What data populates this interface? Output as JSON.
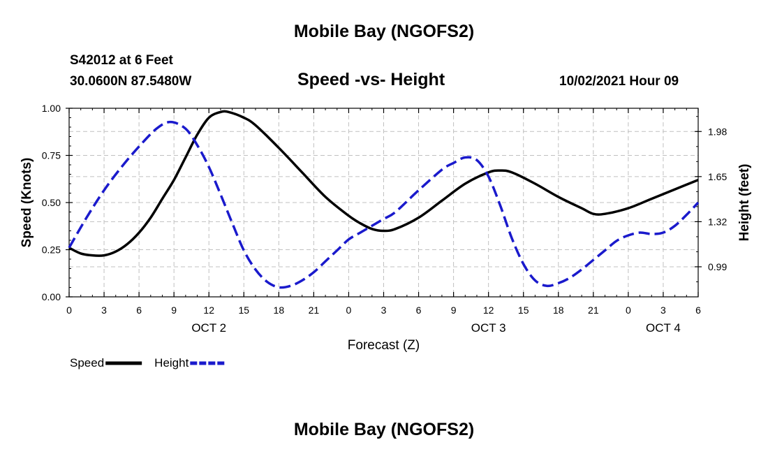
{
  "page": {
    "top_title": "Mobile Bay (NGOFS2)",
    "bottom_title": "Mobile Bay (NGOFS2)",
    "station_line1": "S42012 at 6 Feet",
    "station_line2": "30.0600N  87.5480W",
    "subtitle": "Speed -vs- Height",
    "datetime": "10/02/2021 Hour 09"
  },
  "chart_data": {
    "type": "line",
    "title": "Speed -vs- Height",
    "xlabel": "Forecast (Z)",
    "ylabel": "Speed (Knots)",
    "y2label": "Height (feet)",
    "x_unit": "hours since 10/02/2021 00Z",
    "xlim": [
      0,
      54
    ],
    "ylim": [
      0,
      1.0
    ],
    "y2lim": [
      0.77,
      2.15
    ],
    "x_ticks": [
      0,
      3,
      6,
      9,
      12,
      15,
      18,
      21,
      24,
      27,
      30,
      33,
      36,
      39,
      42,
      45,
      48,
      51,
      54
    ],
    "x_tick_labels": [
      "0",
      "3",
      "6",
      "9",
      "12",
      "15",
      "18",
      "21",
      "0",
      "3",
      "6",
      "9",
      "12",
      "15",
      "18",
      "21",
      "0",
      "3",
      "6"
    ],
    "day_labels": [
      {
        "x": 12,
        "label": "OCT 2"
      },
      {
        "x": 36,
        "label": "OCT 3"
      },
      {
        "x": 51,
        "label": "OCT 4"
      }
    ],
    "y_ticks": [
      "0.00",
      "0.25",
      "0.50",
      "0.75",
      "1.00"
    ],
    "y2_ticks": [
      "0.99",
      "1.32",
      "1.65",
      "1.98"
    ],
    "grid": true,
    "legend_position": "bottom-left",
    "series": [
      {
        "name": "Speed",
        "axis": "left",
        "color": "#000000",
        "style": "solid",
        "x": [
          0,
          1,
          2,
          3,
          4,
          5,
          6,
          7,
          8,
          9,
          10,
          11,
          12,
          13,
          13.7,
          15,
          16,
          18,
          20,
          22,
          24,
          25,
          26,
          27,
          28,
          30,
          32,
          34,
          36,
          37,
          38,
          40,
          42,
          44,
          45,
          46,
          48,
          50,
          52,
          54
        ],
        "values": [
          0.26,
          0.23,
          0.22,
          0.22,
          0.24,
          0.28,
          0.34,
          0.42,
          0.52,
          0.62,
          0.74,
          0.86,
          0.95,
          0.98,
          0.98,
          0.95,
          0.91,
          0.79,
          0.66,
          0.53,
          0.43,
          0.39,
          0.36,
          0.35,
          0.36,
          0.42,
          0.51,
          0.6,
          0.66,
          0.67,
          0.66,
          0.6,
          0.53,
          0.47,
          0.44,
          0.44,
          0.47,
          0.52,
          0.57,
          0.62
        ]
      },
      {
        "name": "Height",
        "axis": "right",
        "color": "#1a1acc",
        "style": "dashed",
        "x": [
          0,
          1.5,
          3,
          4.5,
          6,
          7.5,
          8.7,
          10,
          11,
          12,
          13,
          14,
          15,
          16,
          17,
          18,
          19,
          20,
          21,
          22,
          23,
          24,
          25,
          26,
          27,
          28,
          30,
          32,
          33,
          34,
          35,
          36,
          37,
          38,
          39,
          40,
          41,
          42,
          43,
          44,
          45,
          46,
          47,
          48,
          49,
          50,
          51,
          52,
          53,
          54
        ],
        "values": [
          1.13,
          1.35,
          1.55,
          1.72,
          1.87,
          2.0,
          2.05,
          2.0,
          1.88,
          1.72,
          1.52,
          1.31,
          1.11,
          0.97,
          0.88,
          0.84,
          0.85,
          0.89,
          0.95,
          1.03,
          1.11,
          1.19,
          1.24,
          1.29,
          1.34,
          1.39,
          1.55,
          1.7,
          1.75,
          1.79,
          1.77,
          1.65,
          1.44,
          1.2,
          1.01,
          0.89,
          0.85,
          0.87,
          0.91,
          0.97,
          1.04,
          1.11,
          1.18,
          1.22,
          1.24,
          1.23,
          1.24,
          1.29,
          1.37,
          1.46
        ]
      }
    ]
  }
}
